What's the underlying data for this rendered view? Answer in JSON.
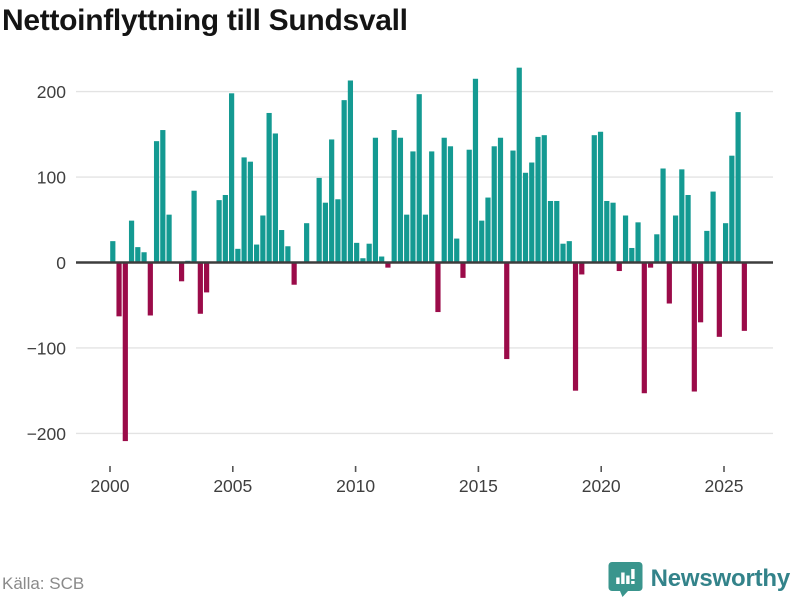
{
  "header": {
    "title": "Nettoinflyttning till Sundsvall"
  },
  "footer": {
    "source": "Källa: SCB"
  },
  "branding": {
    "name": "Newsworthy",
    "icon": "speech-bubble-bar-chart",
    "icon_color": "#3a958d",
    "text_color": "#33838a"
  },
  "chart_data": {
    "type": "bar",
    "title": "Nettoinflyttning till Sundsvall",
    "xlabel": "",
    "ylabel": "",
    "x_start": "2000 Q1",
    "x_end": "2025 Q2",
    "frequency": "quarterly",
    "values": [
      25,
      -63,
      -209,
      49,
      18,
      12,
      -62,
      142,
      155,
      56,
      0,
      -22,
      2,
      84,
      -60,
      -35,
      0,
      73,
      79,
      198,
      16,
      123,
      118,
      21,
      55,
      175,
      151,
      38,
      19,
      -26,
      0,
      46,
      0,
      99,
      70,
      144,
      74,
      190,
      213,
      23,
      5,
      22,
      146,
      7,
      -6,
      155,
      146,
      56,
      130,
      197,
      56,
      130,
      -58,
      146,
      136,
      28,
      -18,
      132,
      215,
      49,
      76,
      136,
      146,
      -113,
      131,
      228,
      105,
      117,
      147,
      149,
      72,
      72,
      22,
      25,
      -150,
      -14,
      0,
      149,
      153,
      72,
      70,
      -10,
      55,
      17,
      47,
      -153,
      -6,
      33,
      110,
      -48,
      55,
      109,
      79,
      -151,
      -70,
      37,
      83,
      -87,
      46,
      125,
      176,
      -80
    ],
    "ylim": [
      -235,
      240
    ],
    "yticks": [
      {
        "label": "200",
        "value": 200
      },
      {
        "label": "100",
        "value": 100
      },
      {
        "label": "0",
        "value": 0
      },
      {
        "label": "−100",
        "value": -100
      },
      {
        "label": "−200",
        "value": -200
      }
    ],
    "xticks": [
      {
        "label": "2000",
        "year": 2000
      },
      {
        "label": "2005",
        "year": 2005
      },
      {
        "label": "2010",
        "year": 2010
      },
      {
        "label": "2015",
        "year": 2015
      },
      {
        "label": "2020",
        "year": 2020
      },
      {
        "label": "2025",
        "year": 2025
      }
    ],
    "legend": false,
    "grid": "horizontal",
    "colors": {
      "positive": "#149a92",
      "negative": "#9b0b49",
      "gridline": "#e3e3e3",
      "zeroline": "#3d3d3d",
      "tick_text": "#3f3f3f"
    }
  }
}
